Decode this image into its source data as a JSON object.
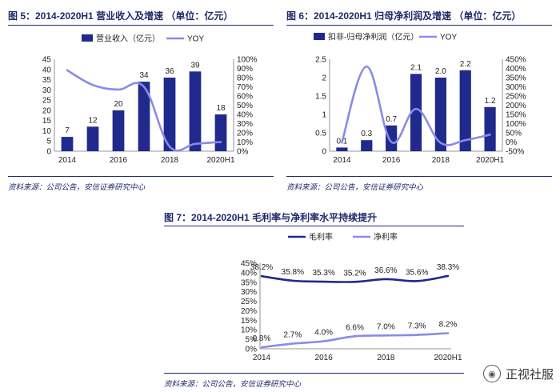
{
  "figures": [
    {
      "title": "图 5：2014-2020H1 营业收入及增速 （单位：亿元）",
      "source": "资料来源：公司公告，安信证券研究中心"
    },
    {
      "title": "图 6：2014-2020H1 归母净利润及增速 （单位：亿元）",
      "source": "资料来源：公司公告，安信证券研究中心"
    },
    {
      "title": "图 7：2014-2020H1 毛利率与净利率水平持续提升",
      "source": "资料来源：公司公告，安信证券研究中心"
    }
  ],
  "watermark": {
    "text": "正视社服",
    "icon": "wechat-icon"
  },
  "colors": {
    "bar": "#1f2a8c",
    "yoy": "#8a8ae8",
    "gross": "#1f2a8c",
    "net": "#8a8ae8",
    "title": "#1f2a6b"
  },
  "chart_data": [
    {
      "type": "bar",
      "categories": [
        "2014",
        "2015",
        "2016",
        "2017",
        "2018",
        "2019",
        "2020H1"
      ],
      "xtick_labels": [
        "2014",
        "",
        "2016",
        "",
        "2018",
        "",
        "2020H1"
      ],
      "series": [
        {
          "name": "营业收入（亿元）",
          "type": "bar",
          "axis": "left",
          "values": [
            7,
            12,
            20,
            34,
            36,
            39,
            18
          ],
          "labels": [
            "7",
            "12",
            "20",
            "34",
            "36",
            "39",
            "18"
          ]
        },
        {
          "name": "YOY",
          "type": "line",
          "axis": "right",
          "values": [
            0.88,
            0.72,
            0.67,
            0.7,
            0.05,
            0.08,
            0.1
          ]
        }
      ],
      "yleft": {
        "lim": [
          0,
          45
        ],
        "ticks": [
          0,
          5,
          10,
          15,
          20,
          25,
          30,
          35,
          40,
          45
        ]
      },
      "yright": {
        "lim": [
          0,
          1.0
        ],
        "ticks": [
          0,
          0.1,
          0.2,
          0.3,
          0.4,
          0.5,
          0.6,
          0.7,
          0.8,
          0.9,
          1.0
        ],
        "tick_labels": [
          "0%",
          "10%",
          "20%",
          "30%",
          "40%",
          "50%",
          "60%",
          "70%",
          "80%",
          "90%",
          "100%"
        ]
      },
      "legend_position": "top"
    },
    {
      "type": "bar",
      "categories": [
        "2014",
        "2015",
        "2016",
        "2017",
        "2018",
        "2019",
        "2020H1"
      ],
      "xtick_labels": [
        "2014",
        "",
        "2016",
        "",
        "2018",
        "",
        "2020H1"
      ],
      "series": [
        {
          "name": "扣非-归母净利润（亿元）",
          "type": "bar",
          "axis": "left",
          "values": [
            0.1,
            0.3,
            0.7,
            2.1,
            2.0,
            2.2,
            1.2
          ],
          "labels": [
            "0.1",
            "0.3",
            "0.7",
            "2.1",
            "2.0",
            "2.2",
            "1.2"
          ]
        },
        {
          "name": "YOY",
          "type": "line",
          "axis": "right",
          "values": [
            0.0,
            4.1,
            0.0,
            1.8,
            -0.05,
            0.1,
            0.4
          ]
        }
      ],
      "yleft": {
        "lim": [
          0,
          2.5
        ],
        "ticks": [
          0,
          0.5,
          1,
          1.5,
          2,
          2.5
        ]
      },
      "yright": {
        "lim": [
          -0.5,
          4.5
        ],
        "ticks": [
          -0.5,
          0,
          0.5,
          1.0,
          1.5,
          2.0,
          2.5,
          3.0,
          3.5,
          4.0,
          4.5
        ],
        "tick_labels": [
          "-50%",
          "0%",
          "50%",
          "100%",
          "150%",
          "200%",
          "250%",
          "300%",
          "350%",
          "400%",
          "450%"
        ]
      },
      "legend_position": "top"
    },
    {
      "type": "line",
      "categories": [
        "2014",
        "2015",
        "2016",
        "2017",
        "2018",
        "2019",
        "2020H1"
      ],
      "xtick_labels": [
        "2014",
        "",
        "2016",
        "",
        "2018",
        "",
        "2020H1"
      ],
      "series": [
        {
          "name": "毛利率",
          "values": [
            0.382,
            0.358,
            0.353,
            0.352,
            0.366,
            0.356,
            0.383
          ],
          "labels": [
            "38.2%",
            "35.8%",
            "35.3%",
            "35.2%",
            "36.6%",
            "35.6%",
            "38.3%"
          ]
        },
        {
          "name": "净利率",
          "values": [
            0.008,
            0.027,
            0.04,
            0.066,
            0.07,
            0.073,
            0.082
          ],
          "labels": [
            "0.8%",
            "2.7%",
            "4.0%",
            "6.6%",
            "7.0%",
            "7.3%",
            "8.2%"
          ]
        }
      ],
      "ylim": [
        0,
        0.45
      ],
      "yticks": [
        0,
        0.05,
        0.1,
        0.15,
        0.2,
        0.25,
        0.3,
        0.35,
        0.4,
        0.45
      ],
      "ytick_labels": [
        "0%",
        "5%",
        "10%",
        "15%",
        "20%",
        "25%",
        "30%",
        "35%",
        "40%",
        "45%"
      ],
      "legend_position": "top"
    }
  ]
}
